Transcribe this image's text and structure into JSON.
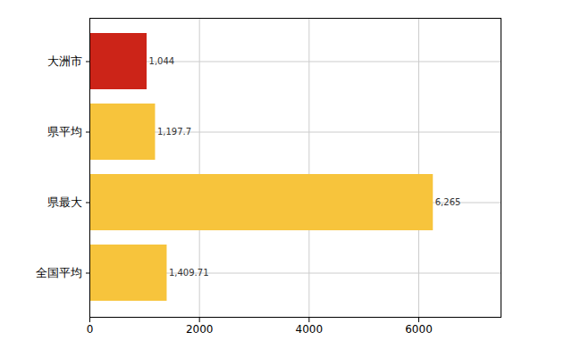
{
  "chart_data": {
    "type": "bar",
    "orientation": "horizontal",
    "categories": [
      "大洲市",
      "県平均",
      "県最大",
      "全国平均"
    ],
    "values": [
      1044,
      1197.7,
      6265,
      1409.71
    ],
    "value_labels": [
      "1,044",
      "1,197.7",
      "6,265",
      "1,409.71"
    ],
    "colors": [
      "#cc2418",
      "#f7c43c",
      "#f7c43c",
      "#f7c43c"
    ],
    "xlim": [
      0,
      7500
    ],
    "xticks": [
      0,
      2000,
      4000,
      6000
    ],
    "grid": true,
    "data_labels": true
  }
}
